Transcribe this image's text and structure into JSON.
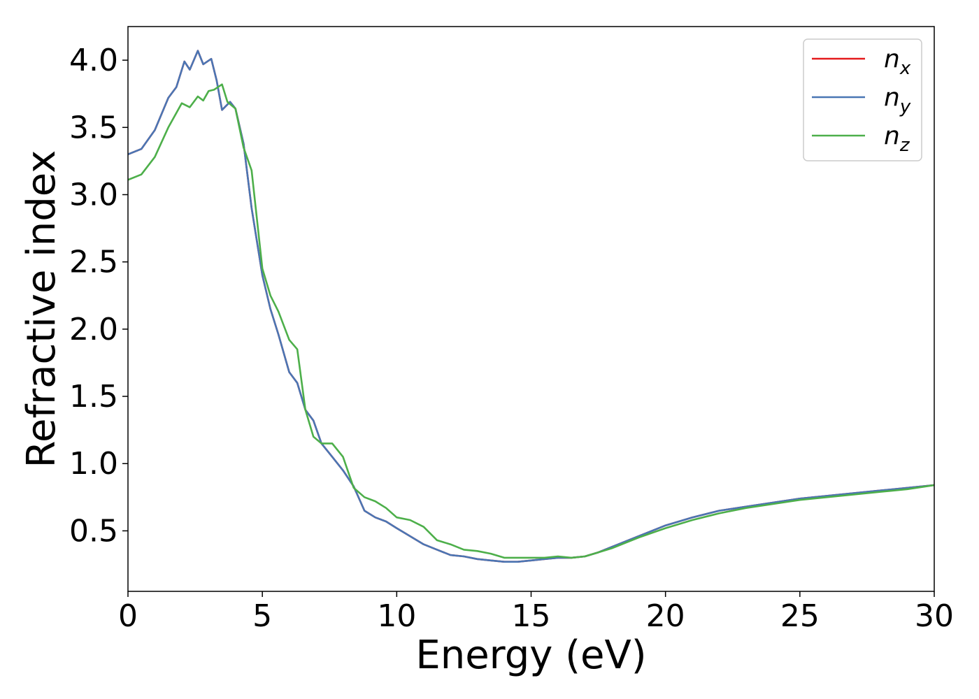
{
  "chart_data": {
    "type": "line",
    "title": "",
    "xlabel": "Energy (eV)",
    "ylabel": "Refractive index",
    "xlim": [
      0,
      30
    ],
    "ylim": [
      0.05,
      4.25
    ],
    "xticks": [
      0,
      5,
      10,
      15,
      20,
      25,
      30
    ],
    "xtick_labels": [
      "0",
      "5",
      "10",
      "15",
      "20",
      "25",
      "30"
    ],
    "yticks": [
      0.5,
      1.0,
      1.5,
      2.0,
      2.5,
      3.0,
      3.5,
      4.0
    ],
    "ytick_labels": [
      "0.5",
      "1.0",
      "1.5",
      "2.0",
      "2.5",
      "3.0",
      "3.5",
      "4.0"
    ],
    "grid": false,
    "legend_position": "top-right",
    "series": [
      {
        "name": "n",
        "sub": "x",
        "color": "#e41a1c",
        "x": [
          0,
          0.5,
          1.0,
          1.5,
          1.8,
          2.1,
          2.3,
          2.6,
          2.8,
          3.1,
          3.3,
          3.5,
          3.8,
          4.0,
          4.3,
          4.6,
          5.0,
          5.3,
          5.6,
          6.0,
          6.3,
          6.6,
          6.9,
          7.2,
          7.6,
          8.0,
          8.4,
          8.8,
          9.2,
          9.6,
          10.0,
          10.5,
          11.0,
          11.5,
          12.0,
          12.5,
          13.0,
          13.5,
          14.0,
          14.5,
          15.0,
          15.5,
          16.0,
          16.5,
          17.0,
          17.5,
          18.0,
          19.0,
          20.0,
          21.0,
          22.0,
          23.0,
          24.0,
          25.0,
          26.0,
          27.0,
          28.0,
          29.0,
          30.0
        ],
        "y": [
          3.3,
          3.34,
          3.48,
          3.72,
          3.8,
          3.99,
          3.93,
          4.07,
          3.97,
          4.01,
          3.85,
          3.63,
          3.69,
          3.64,
          3.38,
          2.9,
          2.4,
          2.15,
          1.96,
          1.68,
          1.6,
          1.4,
          1.32,
          1.15,
          1.05,
          0.95,
          0.83,
          0.65,
          0.6,
          0.57,
          0.52,
          0.46,
          0.4,
          0.36,
          0.32,
          0.31,
          0.29,
          0.28,
          0.27,
          0.27,
          0.28,
          0.29,
          0.3,
          0.3,
          0.31,
          0.34,
          0.38,
          0.46,
          0.54,
          0.6,
          0.65,
          0.68,
          0.71,
          0.74,
          0.76,
          0.78,
          0.8,
          0.82,
          0.84
        ]
      },
      {
        "name": "n",
        "sub": "y",
        "color": "#4a76b4",
        "x": [
          0,
          0.5,
          1.0,
          1.5,
          1.8,
          2.1,
          2.3,
          2.6,
          2.8,
          3.1,
          3.3,
          3.5,
          3.8,
          4.0,
          4.3,
          4.6,
          5.0,
          5.3,
          5.6,
          6.0,
          6.3,
          6.6,
          6.9,
          7.2,
          7.6,
          8.0,
          8.4,
          8.8,
          9.2,
          9.6,
          10.0,
          10.5,
          11.0,
          11.5,
          12.0,
          12.5,
          13.0,
          13.5,
          14.0,
          14.5,
          15.0,
          15.5,
          16.0,
          16.5,
          17.0,
          17.5,
          18.0,
          19.0,
          20.0,
          21.0,
          22.0,
          23.0,
          24.0,
          25.0,
          26.0,
          27.0,
          28.0,
          29.0,
          30.0
        ],
        "y": [
          3.3,
          3.34,
          3.48,
          3.72,
          3.8,
          3.99,
          3.93,
          4.07,
          3.97,
          4.01,
          3.85,
          3.63,
          3.69,
          3.64,
          3.38,
          2.9,
          2.4,
          2.15,
          1.96,
          1.68,
          1.6,
          1.4,
          1.32,
          1.15,
          1.05,
          0.95,
          0.83,
          0.65,
          0.6,
          0.57,
          0.52,
          0.46,
          0.4,
          0.36,
          0.32,
          0.31,
          0.29,
          0.28,
          0.27,
          0.27,
          0.28,
          0.29,
          0.3,
          0.3,
          0.31,
          0.34,
          0.38,
          0.46,
          0.54,
          0.6,
          0.65,
          0.68,
          0.71,
          0.74,
          0.76,
          0.78,
          0.8,
          0.82,
          0.84
        ]
      },
      {
        "name": "n",
        "sub": "z",
        "color": "#4daf4a",
        "x": [
          0,
          0.5,
          1.0,
          1.5,
          2.0,
          2.3,
          2.6,
          2.8,
          3.0,
          3.2,
          3.5,
          3.7,
          4.0,
          4.3,
          4.6,
          5.0,
          5.3,
          5.6,
          6.0,
          6.3,
          6.6,
          6.9,
          7.2,
          7.6,
          8.0,
          8.4,
          8.8,
          9.2,
          9.6,
          10.0,
          10.5,
          11.0,
          11.5,
          12.0,
          12.5,
          13.0,
          13.5,
          14.0,
          14.5,
          15.0,
          15.5,
          16.0,
          16.5,
          17.0,
          17.5,
          18.0,
          19.0,
          20.0,
          21.0,
          22.0,
          23.0,
          24.0,
          25.0,
          26.0,
          27.0,
          28.0,
          29.0,
          30.0
        ],
        "y": [
          3.11,
          3.15,
          3.28,
          3.5,
          3.68,
          3.65,
          3.73,
          3.7,
          3.77,
          3.78,
          3.82,
          3.69,
          3.64,
          3.35,
          3.18,
          2.45,
          2.25,
          2.13,
          1.92,
          1.85,
          1.4,
          1.2,
          1.15,
          1.15,
          1.05,
          0.82,
          0.75,
          0.72,
          0.67,
          0.6,
          0.58,
          0.53,
          0.43,
          0.4,
          0.36,
          0.35,
          0.33,
          0.3,
          0.3,
          0.3,
          0.3,
          0.31,
          0.3,
          0.31,
          0.34,
          0.37,
          0.45,
          0.52,
          0.58,
          0.63,
          0.67,
          0.7,
          0.73,
          0.75,
          0.77,
          0.79,
          0.81,
          0.84
        ]
      }
    ]
  }
}
